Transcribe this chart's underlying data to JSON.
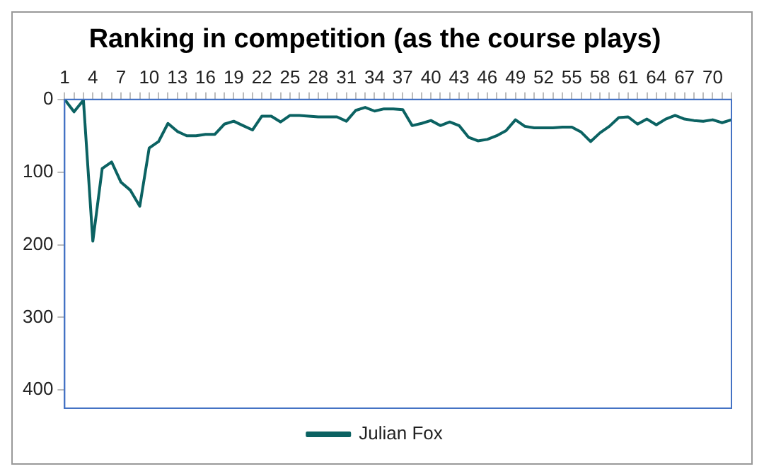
{
  "chart_data": {
    "type": "line",
    "title": "Ranking in competition (as the course plays)",
    "categories": [
      "1",
      null,
      null,
      "4",
      null,
      null,
      "7",
      null,
      null,
      "10",
      null,
      null,
      "13",
      null,
      null,
      "16",
      null,
      null,
      "19",
      null,
      null,
      "22",
      null,
      null,
      "25",
      null,
      null,
      "28",
      null,
      null,
      "31",
      null,
      null,
      "34",
      null,
      null,
      "37",
      null,
      null,
      "40",
      null,
      null,
      "43",
      null,
      null,
      "46",
      null,
      null,
      "49",
      null,
      null,
      "52",
      null,
      null,
      "55",
      null,
      null,
      "58",
      null,
      null,
      "61",
      null,
      null,
      "64",
      null,
      null,
      "67",
      null,
      null,
      "70",
      null,
      null
    ],
    "series": [
      {
        "name": "Julian Fox",
        "color": "#0b6262",
        "values": [
          0,
          17,
          1,
          195,
          95,
          86,
          114,
          125,
          147,
          67,
          58,
          33,
          44,
          50,
          50,
          48,
          48,
          34,
          30,
          36,
          42,
          23,
          23,
          31,
          22,
          22,
          23,
          24,
          24,
          24,
          30,
          15,
          11,
          16,
          13,
          13,
          14,
          36,
          33,
          29,
          36,
          31,
          36,
          52,
          57,
          55,
          50,
          43,
          28,
          37,
          39,
          39,
          39,
          38,
          38,
          45,
          58,
          46,
          37,
          25,
          24,
          34,
          27,
          35,
          27,
          22,
          27,
          29,
          30,
          28,
          32,
          28
        ]
      }
    ],
    "ylim": [
      425,
      0
    ],
    "yticks": [
      0,
      100,
      200,
      300,
      400
    ],
    "grid": false,
    "legend": "bottom",
    "marker": "none",
    "line_style": "solid"
  }
}
